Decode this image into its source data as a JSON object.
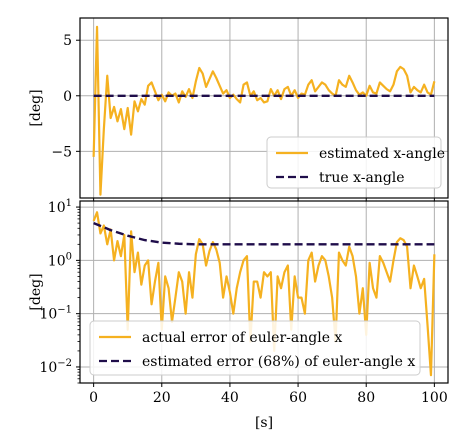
{
  "colors": {
    "estimate": "#f5b120",
    "truth": "#1f0d4a",
    "grid": "#b0b0b0",
    "frame": "#000000",
    "legend_border": "#cccccc"
  },
  "chart_data": [
    {
      "type": "line",
      "xlabel": "",
      "ylabel": "[deg]",
      "xlim": [
        -4,
        104
      ],
      "ylim": [
        -9.2,
        7.0
      ],
      "yscale": "linear",
      "grid": true,
      "legend_position": "lower right",
      "x_ticks": [
        0,
        20,
        40,
        60,
        80,
        100
      ],
      "x_tick_labels_visible": false,
      "y_ticks": [
        5,
        0,
        -5
      ],
      "y_tick_labels": [
        "5",
        "0",
        "−5"
      ],
      "series": [
        {
          "name": "estimated x-angle",
          "style": "solid",
          "color_key": "estimate",
          "x": [
            0,
            1,
            2,
            3,
            4,
            5,
            6,
            7,
            8,
            9,
            10,
            11,
            12,
            13,
            14,
            15,
            16,
            17,
            18,
            19,
            20,
            21,
            22,
            23,
            24,
            25,
            26,
            27,
            28,
            29,
            30,
            31,
            32,
            33,
            34,
            35,
            36,
            37,
            38,
            39,
            40,
            41,
            42,
            43,
            44,
            45,
            46,
            47,
            48,
            49,
            50,
            51,
            52,
            53,
            54,
            55,
            56,
            57,
            58,
            59,
            60,
            61,
            62,
            63,
            64,
            65,
            66,
            67,
            68,
            69,
            70,
            71,
            72,
            73,
            74,
            75,
            76,
            77,
            78,
            79,
            80,
            81,
            82,
            83,
            84,
            85,
            86,
            87,
            88,
            89,
            90,
            91,
            92,
            93,
            94,
            95,
            96,
            97,
            98,
            99,
            100
          ],
          "y": [
            -5.5,
            6.2,
            -8.9,
            -3.0,
            1.8,
            -2.0,
            -1.0,
            -2.3,
            -1.2,
            -3.0,
            -1.1,
            -3.5,
            -0.5,
            -1.4,
            -0.3,
            -0.8,
            0.9,
            1.2,
            0.4,
            -0.4,
            0.1,
            -0.5,
            0.3,
            0.0,
            0.2,
            -0.6,
            0.4,
            -0.1,
            0.6,
            -0.2,
            1.3,
            2.5,
            2.0,
            0.8,
            1.5,
            2.2,
            1.6,
            0.9,
            0.2,
            0.5,
            -0.2,
            0.1,
            -0.3,
            -0.6,
            1.0,
            1.2,
            0.0,
            0.4,
            -0.4,
            -0.2,
            -0.6,
            -0.5,
            0.6,
            0.0,
            0.5,
            -0.3,
            0.6,
            0.8,
            0.0,
            0.5,
            -0.2,
            0.2,
            0.1,
            1.0,
            1.4,
            0.4,
            0.8,
            1.2,
            1.0,
            0.5,
            0.2,
            0.0,
            1.4,
            1.0,
            0.8,
            1.8,
            1.2,
            0.5,
            0.1,
            0.3,
            0.0,
            0.9,
            0.3,
            0.2,
            1.2,
            0.9,
            0.6,
            0.4,
            1.0,
            2.2,
            2.6,
            2.4,
            1.8,
            0.3,
            0.8,
            0.5,
            0.3,
            1.0,
            0.3,
            0.1,
            1.3
          ]
        },
        {
          "name": "true x-angle",
          "style": "dashed",
          "color_key": "truth",
          "x": [
            0,
            100
          ],
          "y": [
            0,
            0
          ]
        }
      ]
    },
    {
      "type": "line",
      "xlabel": "[s]",
      "ylabel": "[deg]",
      "xlim": [
        -4,
        104
      ],
      "ylim": [
        0.005,
        13
      ],
      "yscale": "log",
      "grid": true,
      "legend_position": "lower left",
      "x_ticks": [
        0,
        20,
        40,
        60,
        80,
        100
      ],
      "x_tick_labels": [
        "0",
        "20",
        "40",
        "60",
        "80",
        "100"
      ],
      "y_ticks": [
        10,
        1,
        0.1,
        0.01
      ],
      "y_tick_labels": [
        {
          "base": "10",
          "exp": "1"
        },
        {
          "base": "10",
          "exp": "0"
        },
        {
          "base": "10",
          "exp": "−1"
        },
        {
          "base": "10",
          "exp": "−2"
        }
      ],
      "series": [
        {
          "name": "actual error of euler-angle x",
          "style": "solid",
          "color_key": "estimate",
          "x": [
            0,
            1,
            2,
            3,
            4,
            5,
            6,
            7,
            8,
            9,
            10,
            11,
            12,
            13,
            14,
            15,
            16,
            17,
            18,
            19,
            20,
            21,
            22,
            23,
            24,
            25,
            26,
            27,
            28,
            29,
            30,
            31,
            32,
            33,
            34,
            35,
            36,
            37,
            38,
            39,
            40,
            41,
            42,
            43,
            44,
            45,
            46,
            47,
            48,
            49,
            50,
            51,
            52,
            53,
            54,
            55,
            56,
            57,
            58,
            59,
            60,
            61,
            62,
            63,
            64,
            65,
            66,
            67,
            68,
            69,
            70,
            71,
            72,
            73,
            74,
            75,
            76,
            77,
            78,
            79,
            80,
            81,
            82,
            83,
            84,
            85,
            86,
            87,
            88,
            89,
            90,
            91,
            92,
            93,
            94,
            95,
            96,
            97,
            98,
            99,
            100
          ],
          "y": [
            5.5,
            8.0,
            3.2,
            4.5,
            2.0,
            3.8,
            1.0,
            2.3,
            1.2,
            3.0,
            0.05,
            3.5,
            0.6,
            1.4,
            0.35,
            0.8,
            1.0,
            0.15,
            0.4,
            0.9,
            0.05,
            0.5,
            0.3,
            0.07,
            0.2,
            0.6,
            0.4,
            0.1,
            0.6,
            0.2,
            1.3,
            2.5,
            2.0,
            0.8,
            1.5,
            2.2,
            1.6,
            0.9,
            0.2,
            0.5,
            0.25,
            0.1,
            0.3,
            0.6,
            1.0,
            1.2,
            0.03,
            0.4,
            0.4,
            0.2,
            0.6,
            0.5,
            0.6,
            0.02,
            0.5,
            0.3,
            0.6,
            0.8,
            0.05,
            0.5,
            0.2,
            0.2,
            0.1,
            1.0,
            1.4,
            0.4,
            0.8,
            1.2,
            1.0,
            0.5,
            0.2,
            0.03,
            1.4,
            1.0,
            0.8,
            1.8,
            1.2,
            0.5,
            0.1,
            0.3,
            0.04,
            0.9,
            0.3,
            0.2,
            1.2,
            0.9,
            0.6,
            0.4,
            1.0,
            2.2,
            2.6,
            2.4,
            1.8,
            0.3,
            0.8,
            0.5,
            0.3,
            0.45,
            0.06,
            0.007,
            1.3
          ]
        },
        {
          "name": "estimated error (68%) of euler-angle x",
          "style": "dashed",
          "color_key": "truth",
          "x": [
            0,
            5,
            10,
            15,
            20,
            25,
            30,
            40,
            50,
            60,
            70,
            80,
            90,
            100
          ],
          "y": [
            5.0,
            3.7,
            2.9,
            2.4,
            2.15,
            2.05,
            2.0,
            2.0,
            2.0,
            2.0,
            2.0,
            2.0,
            2.0,
            2.0
          ]
        }
      ]
    }
  ]
}
